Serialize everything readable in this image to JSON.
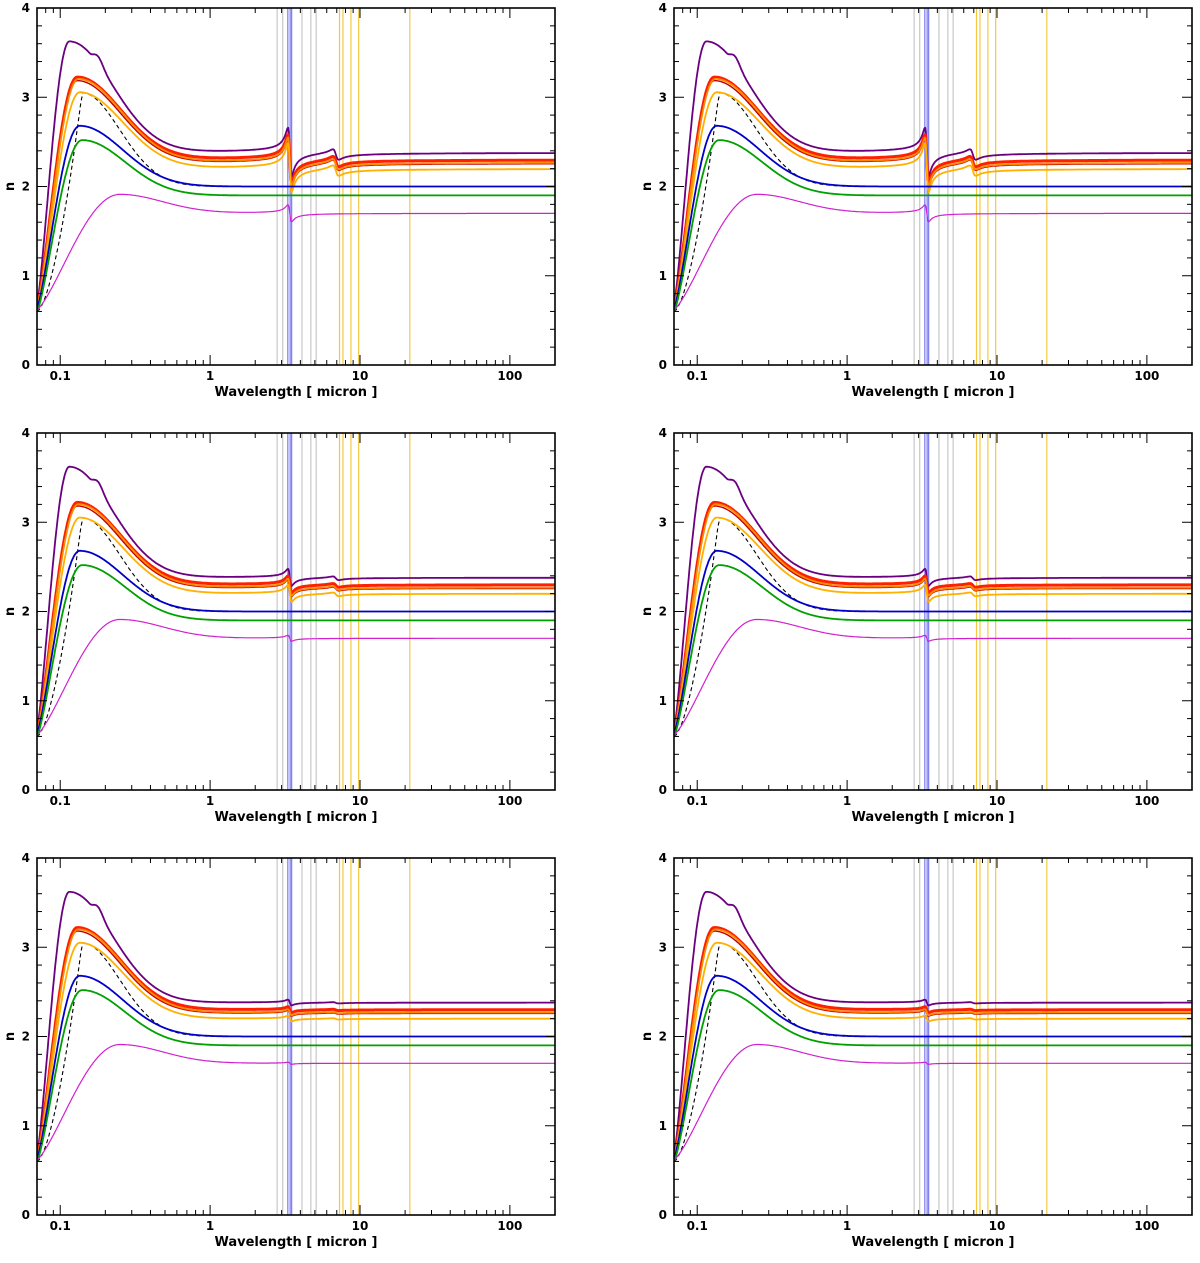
{
  "figure": {
    "panel_count": 6,
    "layout": "3 rows x 2 columns"
  },
  "chart_data": [
    {
      "type": "line",
      "panel": 1,
      "xlabel": "Wavelength [ micron ]",
      "ylabel": "n",
      "xscale": "log",
      "xlim": [
        0.07,
        200
      ],
      "ylim": [
        0,
        4
      ],
      "xticks": [
        "0.1",
        "1",
        "10",
        "100"
      ],
      "yticks": [
        "0",
        "1",
        "2",
        "3",
        "4"
      ],
      "feature_strength": 1.0,
      "vlines": [
        {
          "x": 2.8,
          "color": "#c8c8c8"
        },
        {
          "x": 3.05,
          "color": "#c8c8c8"
        },
        {
          "x": 3.3,
          "color": "#7a7af0"
        },
        {
          "x": 3.42,
          "color": "#7a7af0"
        },
        {
          "x": 3.5,
          "color": "#7a7af0"
        },
        {
          "x": 4.1,
          "color": "#c8c8c8"
        },
        {
          "x": 4.7,
          "color": "#c8c8c8"
        },
        {
          "x": 5.1,
          "color": "#c8c8c8"
        },
        {
          "x": 7.3,
          "color": "#f5c842"
        },
        {
          "x": 7.7,
          "color": "#f5c842"
        },
        {
          "x": 8.7,
          "color": "#f5c842"
        },
        {
          "x": 9.8,
          "color": "#f5c842"
        },
        {
          "x": 21.5,
          "color": "#f5c842"
        }
      ],
      "series": [
        {
          "name": "purple",
          "color": "#6a0080",
          "plateau": 2.38,
          "peak": 3.62,
          "peak_wl": 0.115,
          "second_peak": 3.48,
          "second_wl": 0.17,
          "start": 0.68,
          "width": 1.8
        },
        {
          "name": "red-thick",
          "color": "#ff2000",
          "plateau": 2.3,
          "peak": 3.22,
          "peak_wl": 0.13,
          "start": 0.65,
          "width": 3.0
        },
        {
          "name": "dark-red",
          "color": "#c00000",
          "plateau": 2.26,
          "peak": 3.18,
          "peak_wl": 0.13,
          "start": 0.64,
          "width": 1.4
        },
        {
          "name": "orange",
          "color": "#ff8c00",
          "plateau": 2.27,
          "peak": 3.2,
          "peak_wl": 0.132,
          "start": 0.64,
          "width": 1.8
        },
        {
          "name": "light-orange",
          "color": "#ffb000",
          "plateau": 2.2,
          "peak": 3.05,
          "peak_wl": 0.135,
          "start": 0.62,
          "width": 1.8
        },
        {
          "name": "blue",
          "color": "#0000c8",
          "plateau": 2.0,
          "peak": 2.68,
          "peak_wl": 0.135,
          "start": 0.64,
          "width": 1.8
        },
        {
          "name": "green",
          "color": "#00a000",
          "plateau": 1.9,
          "peak": 2.52,
          "peak_wl": 0.14,
          "start": 0.6,
          "width": 1.8
        },
        {
          "name": "magenta",
          "color": "#d020d0",
          "plateau": 1.7,
          "peak": 1.91,
          "peak_wl": 0.25,
          "start": 0.62,
          "width": 1.2
        }
      ]
    },
    {
      "type": "line",
      "panel": 2,
      "xlabel": "Wavelength [ micron ]",
      "ylabel": "n",
      "xscale": "log",
      "xlim": [
        0.07,
        200
      ],
      "ylim": [
        0,
        4
      ],
      "xticks": [
        "0.1",
        "1",
        "10",
        "100"
      ],
      "yticks": [
        "0",
        "1",
        "2",
        "3",
        "4"
      ],
      "feature_strength": 1.0,
      "vlines": [
        {
          "x": 2.8,
          "color": "#c8c8c8"
        },
        {
          "x": 3.05,
          "color": "#c8c8c8"
        },
        {
          "x": 3.3,
          "color": "#7a7af0"
        },
        {
          "x": 3.42,
          "color": "#7a7af0"
        },
        {
          "x": 3.5,
          "color": "#7a7af0"
        },
        {
          "x": 4.1,
          "color": "#c8c8c8"
        },
        {
          "x": 4.7,
          "color": "#c8c8c8"
        },
        {
          "x": 5.1,
          "color": "#c8c8c8"
        },
        {
          "x": 7.3,
          "color": "#f5c842"
        },
        {
          "x": 7.7,
          "color": "#f5c842"
        },
        {
          "x": 8.7,
          "color": "#f5c842"
        },
        {
          "x": 9.8,
          "color": "#f5c842"
        },
        {
          "x": 21.5,
          "color": "#f5c842"
        }
      ],
      "series": [
        {
          "name": "purple",
          "color": "#6a0080",
          "plateau": 2.38,
          "peak": 3.62,
          "peak_wl": 0.115,
          "second_peak": 3.48,
          "second_wl": 0.17,
          "start": 0.68,
          "width": 1.8
        },
        {
          "name": "red-thick",
          "color": "#ff2000",
          "plateau": 2.3,
          "peak": 3.22,
          "peak_wl": 0.13,
          "start": 0.65,
          "width": 3.0
        },
        {
          "name": "dark-red",
          "color": "#c00000",
          "plateau": 2.26,
          "peak": 3.18,
          "peak_wl": 0.13,
          "start": 0.64,
          "width": 1.4
        },
        {
          "name": "orange",
          "color": "#ff8c00",
          "plateau": 2.27,
          "peak": 3.2,
          "peak_wl": 0.132,
          "start": 0.64,
          "width": 1.8
        },
        {
          "name": "light-orange",
          "color": "#ffb000",
          "plateau": 2.2,
          "peak": 3.05,
          "peak_wl": 0.135,
          "start": 0.62,
          "width": 1.8
        },
        {
          "name": "blue",
          "color": "#0000c8",
          "plateau": 2.0,
          "peak": 2.68,
          "peak_wl": 0.135,
          "start": 0.64,
          "width": 1.8
        },
        {
          "name": "green",
          "color": "#00a000",
          "plateau": 1.9,
          "peak": 2.52,
          "peak_wl": 0.14,
          "start": 0.6,
          "width": 1.8
        },
        {
          "name": "magenta",
          "color": "#d020d0",
          "plateau": 1.7,
          "peak": 1.91,
          "peak_wl": 0.25,
          "start": 0.62,
          "width": 1.2
        }
      ]
    },
    {
      "type": "line",
      "panel": 3,
      "xlabel": "Wavelength [ micron ]",
      "ylabel": "n",
      "xscale": "log",
      "xlim": [
        0.07,
        200
      ],
      "ylim": [
        0,
        4
      ],
      "xticks": [
        "0.1",
        "1",
        "10",
        "100"
      ],
      "yticks": [
        "0",
        "1",
        "2",
        "3",
        "4"
      ],
      "feature_strength": 0.35,
      "vlines": [
        {
          "x": 2.8,
          "color": "#c8c8c8"
        },
        {
          "x": 3.05,
          "color": "#c8c8c8"
        },
        {
          "x": 3.3,
          "color": "#7a7af0"
        },
        {
          "x": 3.42,
          "color": "#7a7af0"
        },
        {
          "x": 3.5,
          "color": "#7a7af0"
        },
        {
          "x": 4.1,
          "color": "#c8c8c8"
        },
        {
          "x": 4.7,
          "color": "#c8c8c8"
        },
        {
          "x": 5.1,
          "color": "#c8c8c8"
        },
        {
          "x": 7.3,
          "color": "#f5c842"
        },
        {
          "x": 7.7,
          "color": "#f5c842"
        },
        {
          "x": 8.7,
          "color": "#f5c842"
        },
        {
          "x": 9.8,
          "color": "#f5c842"
        },
        {
          "x": 21.5,
          "color": "#f5c842"
        }
      ],
      "series": [
        {
          "name": "purple",
          "color": "#6a0080",
          "plateau": 2.38,
          "peak": 3.62,
          "peak_wl": 0.115,
          "second_peak": 3.48,
          "second_wl": 0.17,
          "start": 0.68,
          "width": 1.8
        },
        {
          "name": "red-thick",
          "color": "#ff2000",
          "plateau": 2.3,
          "peak": 3.22,
          "peak_wl": 0.13,
          "start": 0.65,
          "width": 3.0
        },
        {
          "name": "dark-red",
          "color": "#c00000",
          "plateau": 2.26,
          "peak": 3.18,
          "peak_wl": 0.13,
          "start": 0.64,
          "width": 1.4
        },
        {
          "name": "orange",
          "color": "#ff8c00",
          "plateau": 2.27,
          "peak": 3.2,
          "peak_wl": 0.132,
          "start": 0.64,
          "width": 1.8
        },
        {
          "name": "light-orange",
          "color": "#ffb000",
          "plateau": 2.2,
          "peak": 3.05,
          "peak_wl": 0.135,
          "start": 0.62,
          "width": 1.8
        },
        {
          "name": "blue",
          "color": "#0000c8",
          "plateau": 2.0,
          "peak": 2.68,
          "peak_wl": 0.135,
          "start": 0.64,
          "width": 1.8
        },
        {
          "name": "green",
          "color": "#00a000",
          "plateau": 1.9,
          "peak": 2.52,
          "peak_wl": 0.14,
          "start": 0.6,
          "width": 1.8
        },
        {
          "name": "magenta",
          "color": "#d020d0",
          "plateau": 1.7,
          "peak": 1.91,
          "peak_wl": 0.25,
          "start": 0.62,
          "width": 1.2
        }
      ]
    },
    {
      "type": "line",
      "panel": 4,
      "xlabel": "Wavelength [ micron ]",
      "ylabel": "n",
      "xscale": "log",
      "xlim": [
        0.07,
        200
      ],
      "ylim": [
        0,
        4
      ],
      "xticks": [
        "0.1",
        "1",
        "10",
        "100"
      ],
      "yticks": [
        "0",
        "1",
        "2",
        "3",
        "4"
      ],
      "feature_strength": 0.35,
      "vlines": [
        {
          "x": 2.8,
          "color": "#c8c8c8"
        },
        {
          "x": 3.05,
          "color": "#c8c8c8"
        },
        {
          "x": 3.3,
          "color": "#7a7af0"
        },
        {
          "x": 3.42,
          "color": "#7a7af0"
        },
        {
          "x": 3.5,
          "color": "#7a7af0"
        },
        {
          "x": 4.1,
          "color": "#c8c8c8"
        },
        {
          "x": 4.7,
          "color": "#c8c8c8"
        },
        {
          "x": 5.1,
          "color": "#c8c8c8"
        },
        {
          "x": 7.3,
          "color": "#f5c842"
        },
        {
          "x": 7.7,
          "color": "#f5c842"
        },
        {
          "x": 8.7,
          "color": "#f5c842"
        },
        {
          "x": 9.8,
          "color": "#f5c842"
        },
        {
          "x": 21.5,
          "color": "#f5c842"
        }
      ],
      "series": [
        {
          "name": "purple",
          "color": "#6a0080",
          "plateau": 2.38,
          "peak": 3.62,
          "peak_wl": 0.115,
          "second_peak": 3.48,
          "second_wl": 0.17,
          "start": 0.68,
          "width": 1.8
        },
        {
          "name": "red-thick",
          "color": "#ff2000",
          "plateau": 2.3,
          "peak": 3.22,
          "peak_wl": 0.13,
          "start": 0.65,
          "width": 3.0
        },
        {
          "name": "dark-red",
          "color": "#c00000",
          "plateau": 2.26,
          "peak": 3.18,
          "peak_wl": 0.13,
          "start": 0.64,
          "width": 1.4
        },
        {
          "name": "orange",
          "color": "#ff8c00",
          "plateau": 2.27,
          "peak": 3.2,
          "peak_wl": 0.132,
          "start": 0.64,
          "width": 1.8
        },
        {
          "name": "light-orange",
          "color": "#ffb000",
          "plateau": 2.2,
          "peak": 3.05,
          "peak_wl": 0.135,
          "start": 0.62,
          "width": 1.8
        },
        {
          "name": "blue",
          "color": "#0000c8",
          "plateau": 2.0,
          "peak": 2.68,
          "peak_wl": 0.135,
          "start": 0.64,
          "width": 1.8
        },
        {
          "name": "green",
          "color": "#00a000",
          "plateau": 1.9,
          "peak": 2.52,
          "peak_wl": 0.14,
          "start": 0.6,
          "width": 1.8
        },
        {
          "name": "magenta",
          "color": "#d020d0",
          "plateau": 1.7,
          "peak": 1.91,
          "peak_wl": 0.25,
          "start": 0.62,
          "width": 1.2
        }
      ]
    },
    {
      "type": "line",
      "panel": 5,
      "xlabel": "Wavelength [ micron ]",
      "ylabel": "n",
      "xscale": "log",
      "xlim": [
        0.07,
        200
      ],
      "ylim": [
        0,
        4
      ],
      "xticks": [
        "0.1",
        "1",
        "10",
        "100"
      ],
      "yticks": [
        "0",
        "1",
        "2",
        "3",
        "4"
      ],
      "feature_strength": 0.12,
      "vlines": [
        {
          "x": 2.8,
          "color": "#c8c8c8"
        },
        {
          "x": 3.05,
          "color": "#c8c8c8"
        },
        {
          "x": 3.3,
          "color": "#7a7af0"
        },
        {
          "x": 3.42,
          "color": "#7a7af0"
        },
        {
          "x": 3.5,
          "color": "#7a7af0"
        },
        {
          "x": 4.1,
          "color": "#c8c8c8"
        },
        {
          "x": 4.7,
          "color": "#c8c8c8"
        },
        {
          "x": 5.1,
          "color": "#c8c8c8"
        },
        {
          "x": 7.3,
          "color": "#f5c842"
        },
        {
          "x": 7.7,
          "color": "#f5c842"
        },
        {
          "x": 8.7,
          "color": "#f5c842"
        },
        {
          "x": 9.8,
          "color": "#f5c842"
        },
        {
          "x": 21.5,
          "color": "#f5c842"
        }
      ],
      "series": [
        {
          "name": "purple",
          "color": "#6a0080",
          "plateau": 2.38,
          "peak": 3.62,
          "peak_wl": 0.115,
          "second_peak": 3.48,
          "second_wl": 0.17,
          "start": 0.68,
          "width": 1.8
        },
        {
          "name": "red-thick",
          "color": "#ff2000",
          "plateau": 2.3,
          "peak": 3.22,
          "peak_wl": 0.13,
          "start": 0.65,
          "width": 3.0
        },
        {
          "name": "dark-red",
          "color": "#c00000",
          "plateau": 2.26,
          "peak": 3.18,
          "peak_wl": 0.13,
          "start": 0.64,
          "width": 1.4
        },
        {
          "name": "orange",
          "color": "#ff8c00",
          "plateau": 2.27,
          "peak": 3.2,
          "peak_wl": 0.132,
          "start": 0.64,
          "width": 1.8
        },
        {
          "name": "light-orange",
          "color": "#ffb000",
          "plateau": 2.2,
          "peak": 3.05,
          "peak_wl": 0.135,
          "start": 0.62,
          "width": 1.8
        },
        {
          "name": "blue",
          "color": "#0000c8",
          "plateau": 2.0,
          "peak": 2.68,
          "peak_wl": 0.135,
          "start": 0.64,
          "width": 1.8
        },
        {
          "name": "green",
          "color": "#00a000",
          "plateau": 1.9,
          "peak": 2.52,
          "peak_wl": 0.14,
          "start": 0.6,
          "width": 1.8
        },
        {
          "name": "magenta",
          "color": "#d020d0",
          "plateau": 1.7,
          "peak": 1.91,
          "peak_wl": 0.25,
          "start": 0.62,
          "width": 1.2
        }
      ]
    },
    {
      "type": "line",
      "panel": 6,
      "xlabel": "Wavelength [ micron ]",
      "ylabel": "n",
      "xscale": "log",
      "xlim": [
        0.07,
        200
      ],
      "ylim": [
        0,
        4
      ],
      "xticks": [
        "0.1",
        "1",
        "10",
        "100"
      ],
      "yticks": [
        "0",
        "1",
        "2",
        "3",
        "4"
      ],
      "feature_strength": 0.12,
      "vlines": [
        {
          "x": 2.8,
          "color": "#c8c8c8"
        },
        {
          "x": 3.05,
          "color": "#c8c8c8"
        },
        {
          "x": 3.3,
          "color": "#7a7af0"
        },
        {
          "x": 3.42,
          "color": "#7a7af0"
        },
        {
          "x": 3.5,
          "color": "#7a7af0"
        },
        {
          "x": 4.1,
          "color": "#c8c8c8"
        },
        {
          "x": 4.7,
          "color": "#c8c8c8"
        },
        {
          "x": 5.1,
          "color": "#c8c8c8"
        },
        {
          "x": 7.3,
          "color": "#f5c842"
        },
        {
          "x": 7.7,
          "color": "#f5c842"
        },
        {
          "x": 8.7,
          "color": "#f5c842"
        },
        {
          "x": 9.8,
          "color": "#f5c842"
        },
        {
          "x": 21.5,
          "color": "#f5c842"
        }
      ],
      "series": [
        {
          "name": "purple",
          "color": "#6a0080",
          "plateau": 2.38,
          "peak": 3.62,
          "peak_wl": 0.115,
          "second_peak": 3.48,
          "second_wl": 0.17,
          "start": 0.68,
          "width": 1.8
        },
        {
          "name": "red-thick",
          "color": "#ff2000",
          "plateau": 2.3,
          "peak": 3.22,
          "peak_wl": 0.13,
          "start": 0.65,
          "width": 3.0
        },
        {
          "name": "dark-red",
          "color": "#c00000",
          "plateau": 2.26,
          "peak": 3.18,
          "peak_wl": 0.13,
          "start": 0.64,
          "width": 1.4
        },
        {
          "name": "orange",
          "color": "#ff8c00",
          "plateau": 2.27,
          "peak": 3.2,
          "peak_wl": 0.132,
          "start": 0.64,
          "width": 1.8
        },
        {
          "name": "light-orange",
          "color": "#ffb000",
          "plateau": 2.2,
          "peak": 3.05,
          "peak_wl": 0.135,
          "start": 0.62,
          "width": 1.8
        },
        {
          "name": "blue",
          "color": "#0000c8",
          "plateau": 2.0,
          "peak": 2.68,
          "peak_wl": 0.135,
          "start": 0.64,
          "width": 1.8
        },
        {
          "name": "green",
          "color": "#00a000",
          "plateau": 1.9,
          "peak": 2.52,
          "peak_wl": 0.14,
          "start": 0.6,
          "width": 1.8
        },
        {
          "name": "magenta",
          "color": "#d020d0",
          "plateau": 1.7,
          "peak": 1.91,
          "peak_wl": 0.25,
          "start": 0.62,
          "width": 1.2
        }
      ]
    }
  ]
}
